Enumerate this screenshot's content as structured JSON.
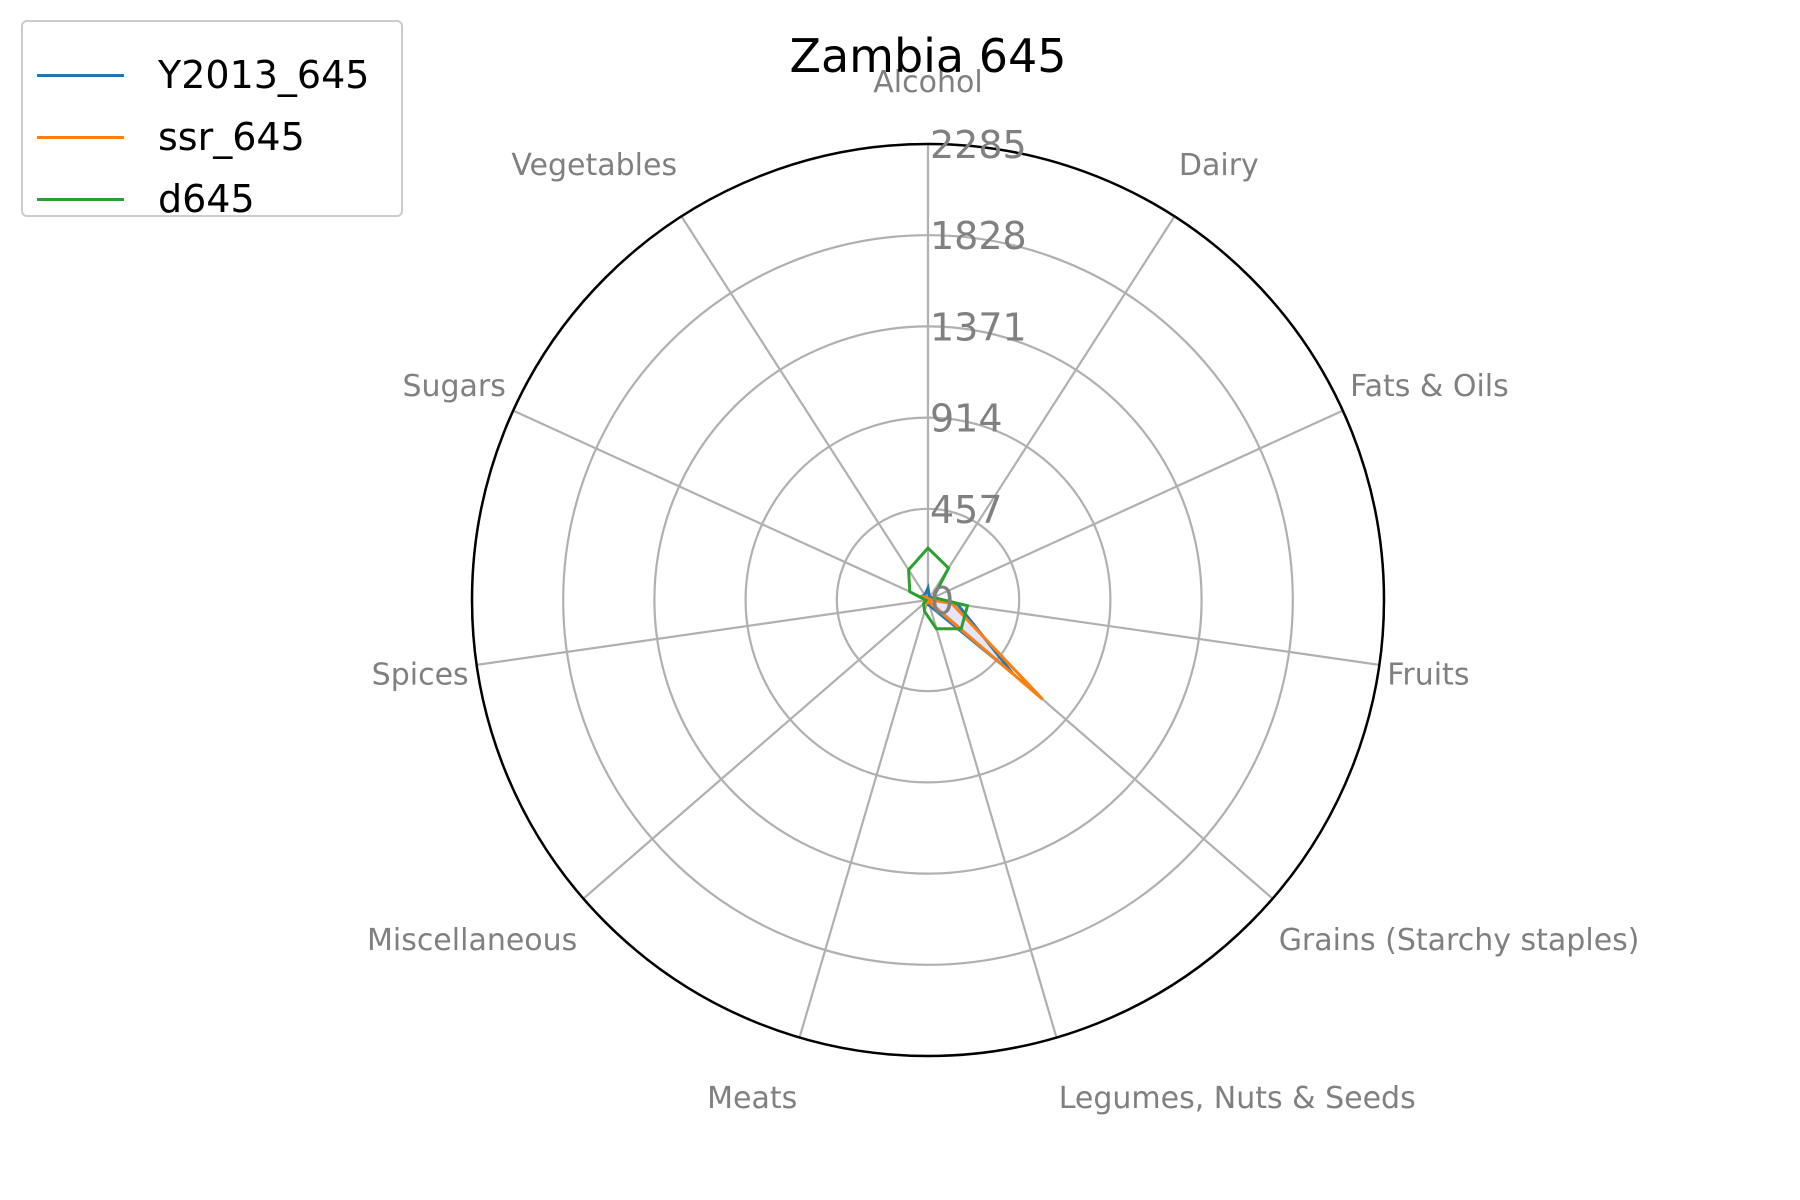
{
  "chart_data": {
    "type": "radar",
    "title": "Zambia 645",
    "categories": [
      "Alcohol",
      "Dairy",
      "Fats & Oils",
      "Fruits",
      "Grains (Starchy staples)",
      "Legumes, Nuts & Seeds",
      "Meats",
      "Miscellaneous",
      "Spices",
      "Sugars",
      "Vegetables"
    ],
    "radial_ticks": [
      0,
      457,
      914,
      1371,
      1828,
      2285
    ],
    "rlim": [
      0,
      2285
    ],
    "grid": true,
    "legend_position": "top-left",
    "series": [
      {
        "name": "Y2013_645",
        "color": "#1f77b4",
        "values": [
          60,
          15,
          25,
          150,
          560,
          30,
          20,
          10,
          5,
          40,
          30
        ],
        "fill": true
      },
      {
        "name": "ssr_645",
        "color": "#ff7f0e",
        "values": [
          0,
          15,
          5,
          120,
          760,
          10,
          15,
          5,
          0,
          40,
          20
        ],
        "fill": false
      },
      {
        "name": "d645",
        "color": "#2ca02c",
        "values": [
          260,
          190,
          30,
          200,
          220,
          150,
          60,
          30,
          10,
          100,
          180
        ],
        "fill": false
      }
    ]
  }
}
